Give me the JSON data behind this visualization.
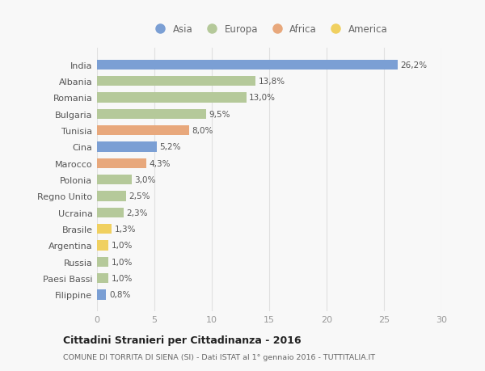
{
  "categories": [
    "India",
    "Albania",
    "Romania",
    "Bulgaria",
    "Tunisia",
    "Cina",
    "Marocco",
    "Polonia",
    "Regno Unito",
    "Ucraina",
    "Brasile",
    "Argentina",
    "Russia",
    "Paesi Bassi",
    "Filippine"
  ],
  "values": [
    26.2,
    13.8,
    13.0,
    9.5,
    8.0,
    5.2,
    4.3,
    3.0,
    2.5,
    2.3,
    1.3,
    1.0,
    1.0,
    1.0,
    0.8
  ],
  "labels": [
    "26,2%",
    "13,8%",
    "13,0%",
    "9,5%",
    "8,0%",
    "5,2%",
    "4,3%",
    "3,0%",
    "2,5%",
    "2,3%",
    "1,3%",
    "1,0%",
    "1,0%",
    "1,0%",
    "0,8%"
  ],
  "continents": [
    "Asia",
    "Europa",
    "Europa",
    "Europa",
    "Africa",
    "Asia",
    "Africa",
    "Europa",
    "Europa",
    "Europa",
    "America",
    "America",
    "Europa",
    "Europa",
    "Asia"
  ],
  "colors": {
    "Asia": "#7b9fd4",
    "Africa": "#e8a87c",
    "America": "#f0d060"
  },
  "colors2": {
    "Asia": "#7b9fd4",
    "Europa": "#b5c99a",
    "Africa": "#e8a87c",
    "America": "#f0d060"
  },
  "legend_labels": [
    "Asia",
    "Europa",
    "Africa",
    "America"
  ],
  "legend_colors": [
    "#7b9fd4",
    "#b5c99a",
    "#e8a87c",
    "#f0d060"
  ],
  "title": "Cittadini Stranieri per Cittadinanza - 2016",
  "subtitle": "COMUNE DI TORRITA DI SIENA (SI) - Dati ISTAT al 1° gennaio 2016 - TUTTITALIA.IT",
  "xlim": [
    0,
    30
  ],
  "xticks": [
    0,
    5,
    10,
    15,
    20,
    25,
    30
  ],
  "background_color": "#f8f8f8",
  "grid_color": "#e0e0e0",
  "bar_height": 0.6
}
